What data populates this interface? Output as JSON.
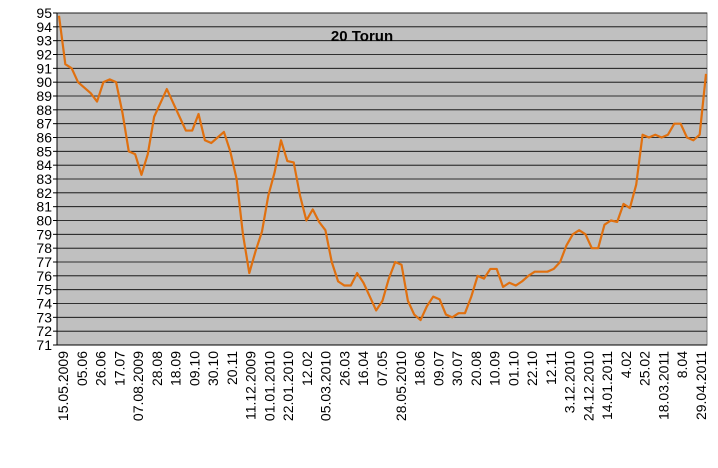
{
  "chart_data": {
    "type": "line",
    "title": "20 Torun",
    "xlabel": "",
    "ylabel": "",
    "ylim": [
      71,
      95
    ],
    "y_ticks": [
      71,
      72,
      73,
      74,
      75,
      76,
      77,
      78,
      79,
      80,
      81,
      82,
      83,
      84,
      85,
      86,
      87,
      88,
      89,
      90,
      91,
      92,
      93,
      94,
      95
    ],
    "grid": true,
    "legend": "none",
    "colors": {
      "line": "#e0700f",
      "plot_bg": "#c0c0c0",
      "grid": "#000000"
    },
    "x_tick_labels": [
      "15.05.2009",
      "05.06",
      "26.06",
      "17.07",
      "07.08.2009",
      "28.08",
      "18.09",
      "09.10",
      "30.10",
      "20.11",
      "11.12.2009",
      "01.01.2010",
      "22.01.2010",
      "12.02",
      "05.03.2010",
      "26.03",
      "16.04",
      "07.05",
      "28.05.2010",
      "18.06",
      "09.07",
      "30.07",
      "20.08",
      "10.09",
      "01.10",
      "22.10",
      "12.11",
      "3.12.2010",
      "24.12.2010",
      "14.01.2011",
      "4.02",
      "25.02",
      "18.03.2011",
      "8.04",
      "29.04.2011"
    ],
    "series": [
      {
        "values": [
          94.8,
          91.3,
          91.0,
          90.0,
          89.6,
          89.2,
          88.6,
          90.0,
          90.2,
          90.0,
          87.8,
          85.0,
          84.8,
          83.3,
          84.8,
          87.5,
          88.5,
          89.5,
          88.5,
          87.5,
          86.5,
          86.5,
          87.7,
          85.8,
          85.6,
          86.0,
          86.4,
          85.0,
          83.0,
          79.0,
          76.2,
          77.8,
          79.2,
          81.8,
          83.5,
          85.8,
          84.3,
          84.2,
          81.8,
          80.0,
          80.8,
          79.9,
          79.3,
          77.0,
          75.6,
          75.3,
          75.3,
          76.2,
          75.5,
          74.5,
          73.5,
          74.2,
          75.8,
          77.0,
          76.8,
          74.2,
          73.2,
          72.8,
          73.8,
          74.5,
          74.3,
          73.2,
          73.0,
          73.3,
          73.3,
          74.5,
          76.0,
          75.8,
          76.5,
          76.5,
          75.2,
          75.5,
          75.3,
          75.6,
          76.0,
          76.3,
          76.3,
          76.3,
          76.5,
          77.0,
          78.2,
          79.0,
          79.3,
          79.0,
          78.0,
          78.0,
          79.7,
          80.0,
          79.9,
          81.2,
          80.9,
          82.6,
          86.2,
          86.0,
          86.2,
          86.0,
          86.2,
          87.0,
          87.0,
          86.0,
          85.8,
          86.2,
          90.6
        ]
      }
    ]
  }
}
